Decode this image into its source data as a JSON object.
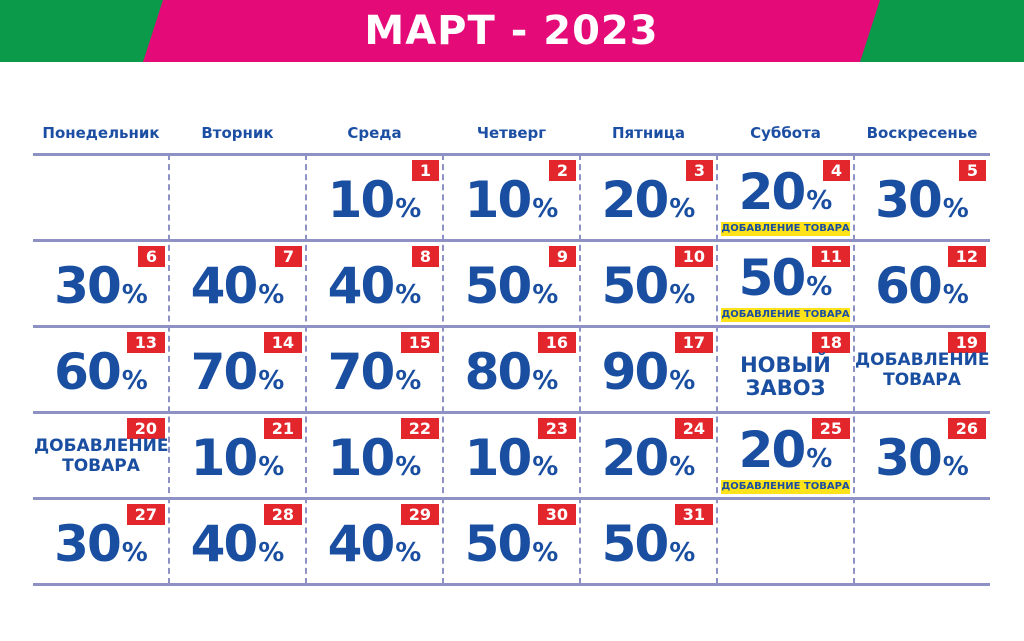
{
  "title": "МАРТ - 2023",
  "weekdays": [
    "Понедельник",
    "Вторник",
    "Среда",
    "Четверг",
    "Пятница",
    "Суббота",
    "Воскресенье"
  ],
  "note_text": "ДОБАВЛЕНИЕ ТОВАРА",
  "colors": {
    "banner_green": "#0a9a4a",
    "banner_pink": "#e40a78",
    "day_badge": "#e3262c",
    "text_blue": "#1a4ea0",
    "note_yellow": "#ffe31a"
  },
  "days": [
    {
      "day": "1",
      "discount": "10",
      "pct": "%"
    },
    {
      "day": "2",
      "discount": "10",
      "pct": "%"
    },
    {
      "day": "3",
      "discount": "20",
      "pct": "%"
    },
    {
      "day": "4",
      "discount": "20",
      "pct": "%",
      "note": "ДОБАВЛЕНИЕ ТОВАРА"
    },
    {
      "day": "5",
      "discount": "30",
      "pct": "%"
    },
    {
      "day": "6",
      "discount": "30",
      "pct": "%"
    },
    {
      "day": "7",
      "discount": "40",
      "pct": "%"
    },
    {
      "day": "8",
      "discount": "40",
      "pct": "%"
    },
    {
      "day": "9",
      "discount": "50",
      "pct": "%"
    },
    {
      "day": "10",
      "discount": "50",
      "pct": "%"
    },
    {
      "day": "11",
      "discount": "50",
      "pct": "%",
      "note": "ДОБАВЛЕНИЕ ТОВАРА"
    },
    {
      "day": "12",
      "discount": "60",
      "pct": "%"
    },
    {
      "day": "13",
      "discount": "60",
      "pct": "%"
    },
    {
      "day": "14",
      "discount": "70",
      "pct": "%"
    },
    {
      "day": "15",
      "discount": "70",
      "pct": "%"
    },
    {
      "day": "16",
      "discount": "80",
      "pct": "%"
    },
    {
      "day": "17",
      "discount": "90",
      "pct": "%"
    },
    {
      "day": "18",
      "label": "НОВЫЙ\nЗАВОЗ"
    },
    {
      "day": "19",
      "label": "ДОБАВЛЕНИЕ\nТОВАРА"
    },
    {
      "day": "20",
      "label": "ДОБАВЛЕНИЕ\nТОВАРА"
    },
    {
      "day": "21",
      "discount": "10",
      "pct": "%"
    },
    {
      "day": "22",
      "discount": "10",
      "pct": "%"
    },
    {
      "day": "23",
      "discount": "10",
      "pct": "%"
    },
    {
      "day": "24",
      "discount": "20",
      "pct": "%"
    },
    {
      "day": "25",
      "discount": "20",
      "pct": "%",
      "note": "ДОБАВЛЕНИЕ ТОВАРА"
    },
    {
      "day": "26",
      "discount": "30",
      "pct": "%"
    },
    {
      "day": "27",
      "discount": "30",
      "pct": "%"
    },
    {
      "day": "28",
      "discount": "40",
      "pct": "%"
    },
    {
      "day": "29",
      "discount": "40",
      "pct": "%"
    },
    {
      "day": "30",
      "discount": "50",
      "pct": "%"
    },
    {
      "day": "31",
      "discount": "50",
      "pct": "%"
    }
  ]
}
